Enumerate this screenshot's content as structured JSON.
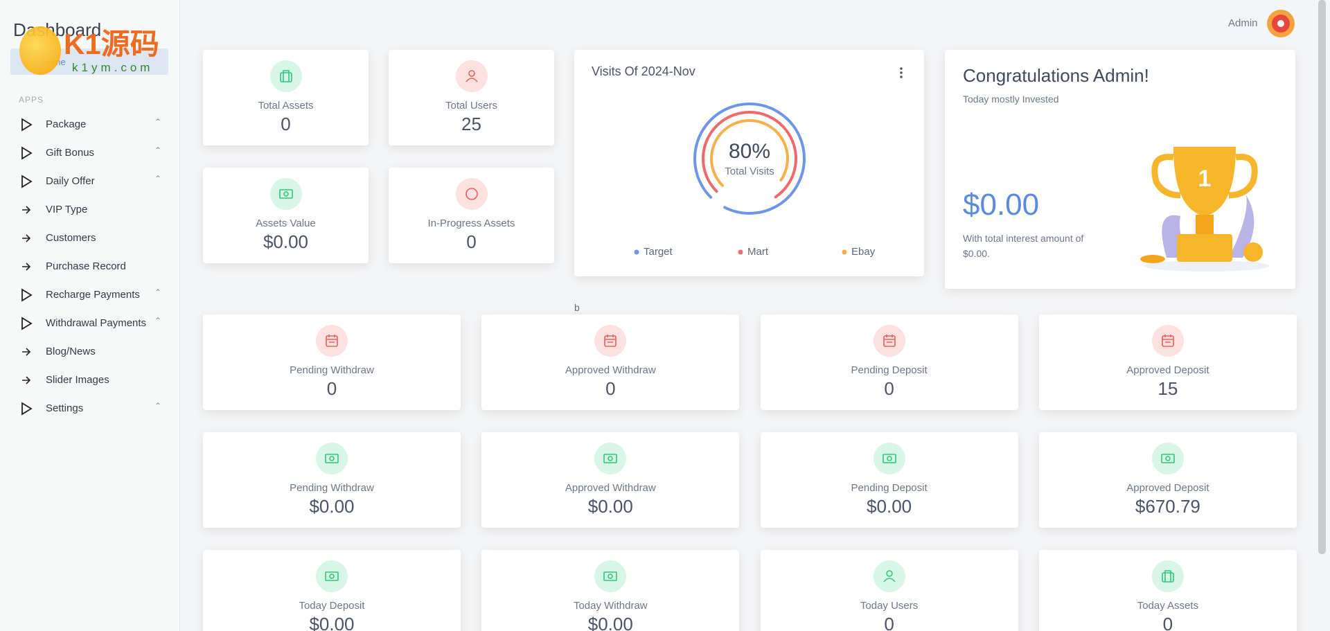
{
  "sidebar": {
    "title": "Dashboard",
    "breadcrumb": "Home",
    "watermark": [
      "K1源码",
      "k1ym.com"
    ],
    "section": "APPS",
    "menu": [
      {
        "label": "Package",
        "kind": "group"
      },
      {
        "label": "Gift Bonus",
        "kind": "group"
      },
      {
        "label": "Daily Offer",
        "kind": "group"
      },
      {
        "label": "VIP Type",
        "kind": "link"
      },
      {
        "label": "Customers",
        "kind": "link"
      },
      {
        "label": "Purchase Record",
        "kind": "link"
      },
      {
        "label": "Recharge Payments",
        "kind": "group"
      },
      {
        "label": "Withdrawal Payments",
        "kind": "group"
      },
      {
        "label": "Blog/News",
        "kind": "link"
      },
      {
        "label": "Slider Images",
        "kind": "link"
      },
      {
        "label": "Settings",
        "kind": "group"
      }
    ]
  },
  "header": {
    "user": "Admin"
  },
  "summary_cards": [
    {
      "label": "Total Assets",
      "value": "0",
      "icon": "bag",
      "tone": "green"
    },
    {
      "label": "Total Users",
      "value": "25",
      "icon": "user",
      "tone": "red"
    },
    {
      "label": "Assets Value",
      "value": "$0.00",
      "icon": "cash",
      "tone": "green"
    },
    {
      "label": "In-Progress Assets",
      "value": "0",
      "icon": "ring",
      "tone": "red"
    }
  ],
  "visits": {
    "title": "Visits Of 2024-Nov",
    "center_value": "80%",
    "center_label": "Total Visits",
    "series": [
      {
        "name": "Target",
        "color": "#6f96e6",
        "percent": 95
      },
      {
        "name": "Mart",
        "color": "#ee6a6a",
        "percent": 78
      },
      {
        "name": "Ebay",
        "color": "#f5b04a",
        "percent": 72
      }
    ]
  },
  "congrats": {
    "title": "Congratulations Admin!",
    "subtitle": "Today mostly Invested",
    "amount": "$0.00",
    "note": "With total interest amount of $0.00."
  },
  "stray_text": "b",
  "stat_cards": [
    {
      "label": "Pending Withdraw",
      "value": "0",
      "icon": "calendar",
      "tone": "red"
    },
    {
      "label": "Approved Withdraw",
      "value": "0",
      "icon": "calendar",
      "tone": "red"
    },
    {
      "label": "Pending Deposit",
      "value": "0",
      "icon": "calendar",
      "tone": "red"
    },
    {
      "label": "Approved Deposit",
      "value": "15",
      "icon": "calendar",
      "tone": "red"
    },
    {
      "label": "Pending Withdraw",
      "value": "$0.00",
      "icon": "cash",
      "tone": "green"
    },
    {
      "label": "Approved Withdraw",
      "value": "$0.00",
      "icon": "cash",
      "tone": "green"
    },
    {
      "label": "Pending Deposit",
      "value": "$0.00",
      "icon": "cash",
      "tone": "green"
    },
    {
      "label": "Approved Deposit",
      "value": "$670.79",
      "icon": "cash",
      "tone": "green"
    },
    {
      "label": "Today Deposit",
      "value": "$0.00",
      "icon": "cash",
      "tone": "green"
    },
    {
      "label": "Today Withdraw",
      "value": "$0.00",
      "icon": "cash",
      "tone": "green"
    },
    {
      "label": "Today Users",
      "value": "0",
      "icon": "user",
      "tone": "green"
    },
    {
      "label": "Today Assets",
      "value": "0",
      "icon": "bag",
      "tone": "green"
    }
  ]
}
